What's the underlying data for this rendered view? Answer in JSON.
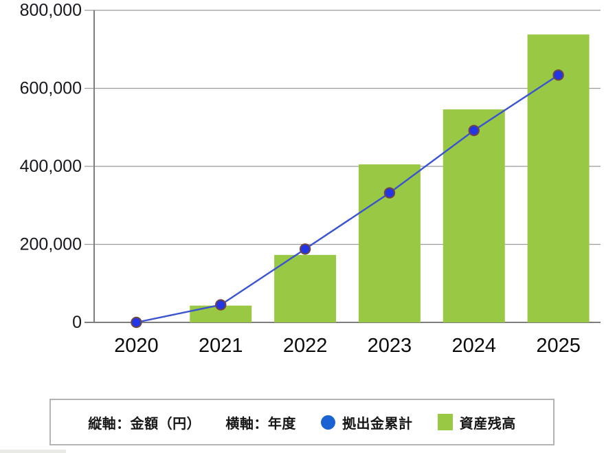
{
  "chart_data": {
    "type": "bar",
    "subtype": "bar_line_combo",
    "title": "",
    "categories": [
      "2020",
      "2021",
      "2022",
      "2023",
      "2024",
      "2025"
    ],
    "series": [
      {
        "name": "資産残高",
        "type": "bar",
        "color": "#99c944",
        "values": [
          0,
          43000,
          173000,
          405000,
          546000,
          738000
        ]
      },
      {
        "name": "拠出金累計",
        "type": "line",
        "color": "#3a53d0",
        "marker_color": "#2436e3",
        "marker_edge": "#6e4646",
        "values": [
          0,
          45000,
          188000,
          332000,
          492000,
          634000
        ]
      }
    ],
    "xlabel": "年度",
    "ylabel": "金額（円）",
    "ylim": [
      0,
      800000
    ],
    "ytick_step": 200000,
    "ytick_labels": [
      "0",
      "200,000",
      "400,000",
      "600,000",
      "800,000"
    ],
    "grid": true,
    "grid_color": "#9b9b9b",
    "axis_color": "#7d7d7d",
    "tick_label_color": "#17171f",
    "xtick_label_color": "#0a0a0a",
    "legend_position": "bottom"
  },
  "legend": {
    "y_axis_note": "縦軸：金額（円）",
    "x_axis_note": "横軸：年度",
    "contributions_label": "拠出金累計",
    "balance_label": "資産残高",
    "contributions_dot_color": "#1b63d2",
    "balance_swatch_color": "#99c944"
  }
}
